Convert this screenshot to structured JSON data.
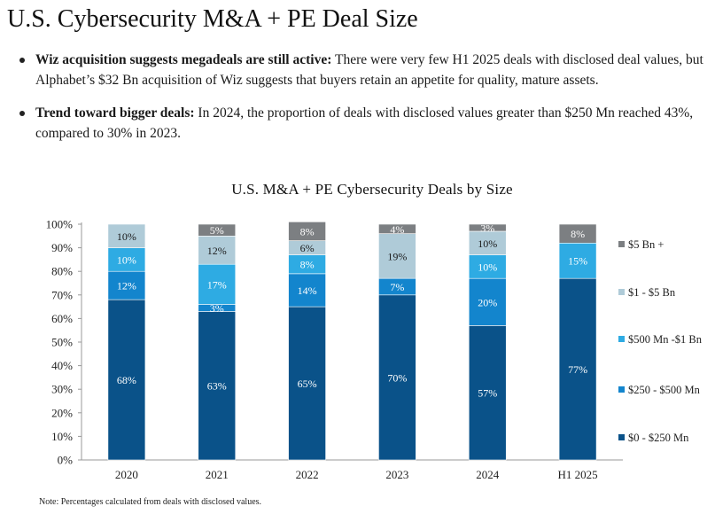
{
  "title": "U.S. Cybersecurity M&A + PE Deal Size",
  "bullets": [
    {
      "heading": "Wiz acquisition suggests megadeals are still active:",
      "text": "There were very few H1 2025 deals with disclosed deal values, but Alphabet’s $32 Bn acquisition of Wiz suggests that buyers retain an appetite for quality, mature assets."
    },
    {
      "heading": "Trend toward bigger deals:",
      "text": "In 2024, the proportion of deals with disclosed values greater than $250 Mn reached 43%, compared to 30% in 2023."
    }
  ],
  "note": "Note: Percentages calculated from deals with disclosed values.",
  "colors": {
    "s0": "#0a5289",
    "s1": "#1385cd",
    "s2": "#2eabe3",
    "s3": "#afcbd8",
    "s4": "#7c7f82",
    "axis": "#999999",
    "text": "#222222",
    "label": "#ffffff"
  },
  "chart_data": {
    "type": "bar",
    "stacked": true,
    "title": "U.S. M&A + PE Cybersecurity Deals by Size",
    "xlabel": "",
    "ylabel": "",
    "ylim": [
      0,
      100
    ],
    "yticks": [
      "0%",
      "10%",
      "20%",
      "30%",
      "40%",
      "50%",
      "60%",
      "70%",
      "80%",
      "90%",
      "100%"
    ],
    "grid": false,
    "legend_position": "right",
    "categories": [
      "2020",
      "2021",
      "2022",
      "2023",
      "2024",
      "H1 2025"
    ],
    "series": [
      {
        "name": "$0 - $250 Mn",
        "values": [
          68,
          63,
          65,
          70,
          57,
          77
        ],
        "labels": [
          "68%",
          "63%",
          "65%",
          "70%",
          "57%",
          "77%"
        ]
      },
      {
        "name": "$250 - $500 Mn",
        "values": [
          12,
          3,
          14,
          7,
          20,
          0
        ],
        "labels": [
          "12%",
          "3%",
          "14%",
          "7%",
          "20%",
          ""
        ]
      },
      {
        "name": "$500 Mn -$1 Bn",
        "values": [
          10,
          17,
          8,
          0,
          10,
          15
        ],
        "labels": [
          "10%",
          "17%",
          "8%",
          "",
          "10%",
          "15%"
        ]
      },
      {
        "name": "$1 - $5 Bn",
        "values": [
          10,
          12,
          6,
          19,
          10,
          0
        ],
        "labels": [
          "10%",
          "12%",
          "6%",
          "19%",
          "10%",
          ""
        ]
      },
      {
        "name": "$5 Bn +",
        "values": [
          0,
          5,
          8,
          4,
          3,
          8
        ],
        "labels": [
          "",
          "5%",
          "8%",
          "4%",
          "3%",
          "8%"
        ]
      }
    ]
  }
}
